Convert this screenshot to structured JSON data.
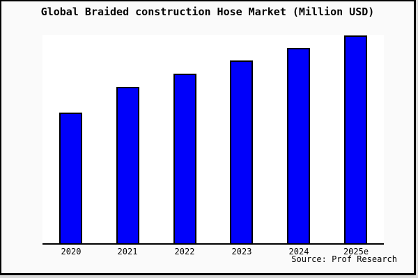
{
  "figure": {
    "title": "Global Braided construction Hose Market (Million USD)",
    "source_note": "Source: Prof Research"
  },
  "colors": {
    "bar_fill": "#0000fa",
    "bar_border": "#000000",
    "figure_background": "#fafafa",
    "plot_background": "#ffffff",
    "axis_line": "#000000",
    "frame_border": "#000000",
    "text": "#000000"
  },
  "chart_data": {
    "type": "bar",
    "title": "Global Braided construction Hose Market (Million USD)",
    "categories": [
      "2020",
      "2021",
      "2022",
      "2023",
      "2024",
      "2025e"
    ],
    "values": [
      62.9,
      75.3,
      81.6,
      88.0,
      94.0,
      100.0
    ],
    "values_note": "No y-axis scale or data labels are shown in the image; values are measured bar heights normalized to 2025e = 100.",
    "xlabel": "",
    "ylabel": "",
    "ylim": [
      0,
      100.3
    ],
    "grid": false,
    "legend": false,
    "bar_color": "#0000fa",
    "source": "Source: Prof Research"
  }
}
